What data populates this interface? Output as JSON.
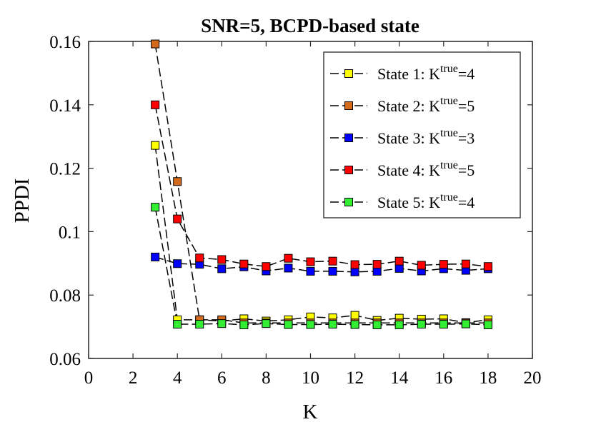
{
  "chart_data": {
    "type": "line",
    "title": "SNR=5, BCPD-based state",
    "xlabel": "K",
    "ylabel": "PPDI",
    "xlim": [
      0,
      20
    ],
    "ylim": [
      0.06,
      0.16
    ],
    "xticks": [
      "0",
      "2",
      "4",
      "6",
      "8",
      "10",
      "12",
      "14",
      "16",
      "18",
      "20"
    ],
    "yticks": [
      "0.06",
      "0.08",
      "0.1",
      "0.12",
      "0.14",
      "0.16"
    ],
    "grid": false,
    "legend_position": "top-right",
    "line_style": "dashed",
    "x": [
      3,
      4,
      5,
      6,
      7,
      8,
      9,
      10,
      11,
      12,
      13,
      14,
      15,
      16,
      17,
      18
    ],
    "series": [
      {
        "name_prefix": "State 1: K",
        "name_sup": "true",
        "name_suffix": "=4",
        "color": "#ffff00",
        "values": [
          0.1272,
          0.0722,
          0.0722,
          0.0718,
          0.0725,
          0.0718,
          0.0722,
          0.0731,
          0.0728,
          0.0736,
          0.072,
          0.0727,
          0.0724,
          0.0725,
          0.0713,
          0.0722
        ]
      },
      {
        "name_prefix": "State 2: K",
        "name_sup": "true",
        "name_suffix": "=5",
        "color": "#d46a1c",
        "values": [
          0.1592,
          0.1158,
          0.0722,
          0.0722,
          0.0712,
          0.0712,
          0.0712,
          0.0712,
          0.0712,
          0.0712,
          0.0712,
          0.0712,
          0.0712,
          0.0712,
          0.0712,
          0.0712
        ]
      },
      {
        "name_prefix": "State 3: K",
        "name_sup": "true",
        "name_suffix": "=3",
        "color": "#0000ff",
        "values": [
          0.092,
          0.0899,
          0.0897,
          0.0883,
          0.0889,
          0.0876,
          0.0885,
          0.0875,
          0.0875,
          0.0873,
          0.0875,
          0.0884,
          0.0876,
          0.0883,
          0.0878,
          0.0883
        ]
      },
      {
        "name_prefix": "State 4: K",
        "name_sup": "true",
        "name_suffix": "=5",
        "color": "#ff0000",
        "values": [
          0.14,
          0.104,
          0.0917,
          0.0912,
          0.0898,
          0.089,
          0.0916,
          0.0905,
          0.0907,
          0.0896,
          0.0897,
          0.0907,
          0.0894,
          0.0897,
          0.0898,
          0.089
        ]
      },
      {
        "name_prefix": "State 5: K",
        "name_sup": "true",
        "name_suffix": "=4",
        "color": "#33ee33",
        "values": [
          0.1077,
          0.0708,
          0.0708,
          0.071,
          0.0706,
          0.071,
          0.0707,
          0.0707,
          0.0708,
          0.0707,
          0.0706,
          0.0706,
          0.0708,
          0.0708,
          0.0709,
          0.0706
        ]
      }
    ]
  }
}
